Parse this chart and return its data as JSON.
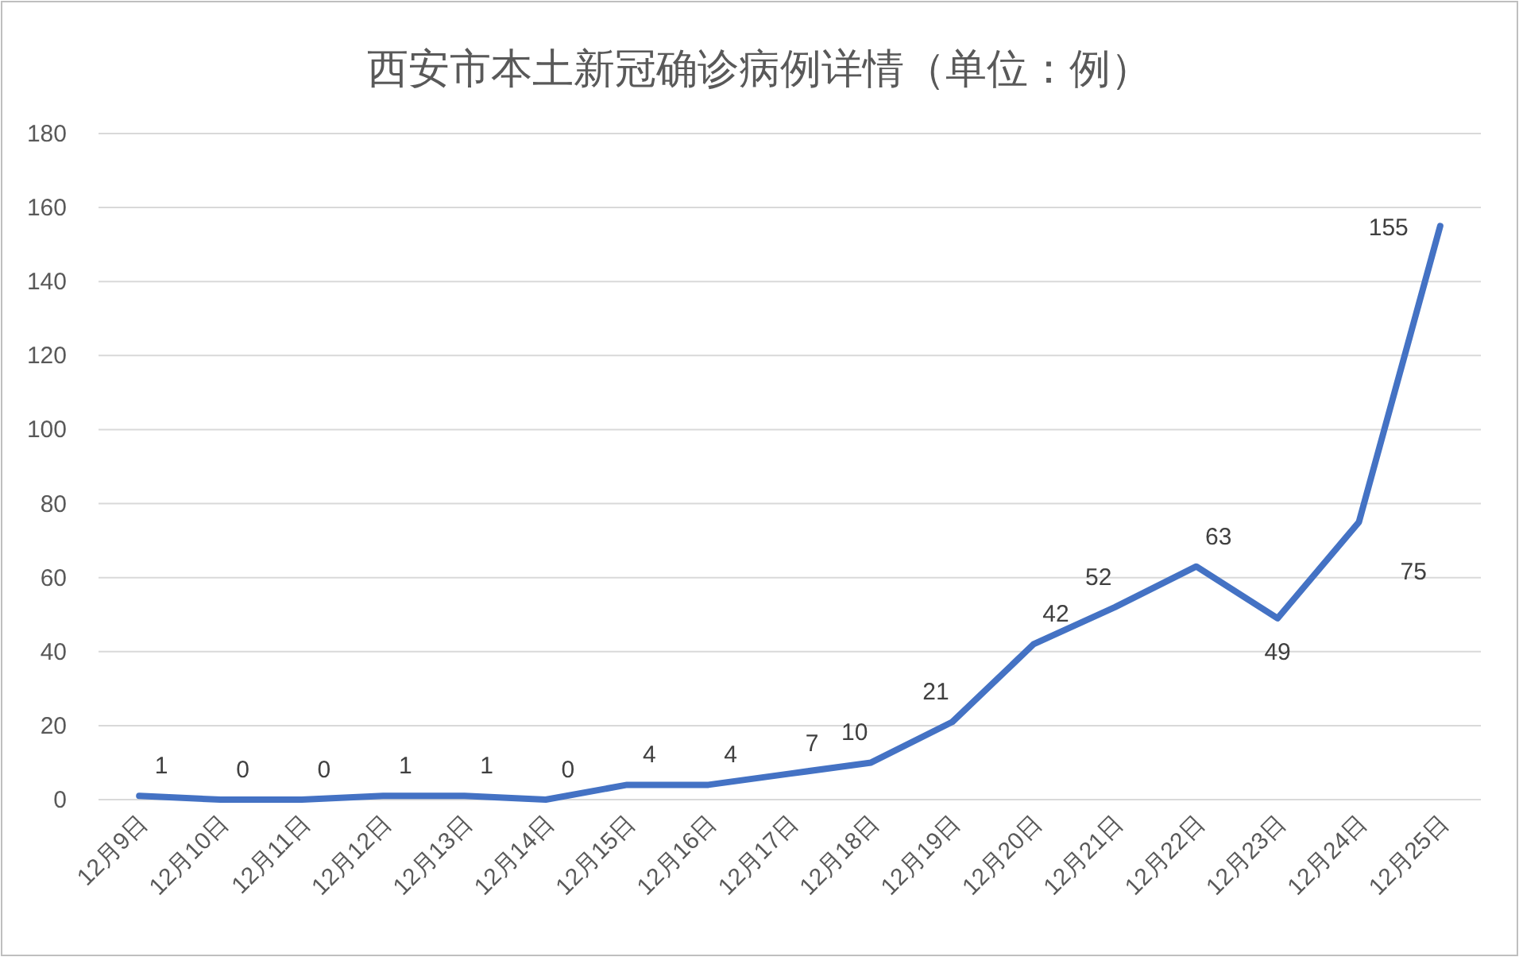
{
  "chart_data": {
    "type": "line",
    "title": "西安市本土新冠确诊病例详情（单位：例）",
    "categories": [
      "12月9日",
      "12月10日",
      "12月11日",
      "12月12日",
      "12月13日",
      "12月14日",
      "12月15日",
      "12月16日",
      "12月17日",
      "12月18日",
      "12月19日",
      "12月20日",
      "12月21日",
      "12月22日",
      "12月23日",
      "12月24日",
      "12月25日"
    ],
    "series": [
      {
        "color": "#4472c4",
        "values": [
          1,
          0,
          0,
          1,
          1,
          0,
          4,
          4,
          7,
          10,
          21,
          42,
          52,
          63,
          49,
          75,
          155
        ]
      }
    ],
    "ylim": [
      0,
      180
    ],
    "yticks": [
      0,
      20,
      40,
      60,
      80,
      100,
      120,
      140,
      160,
      180
    ],
    "grid": "y",
    "data_labels": true,
    "marker": "none",
    "line_style": "solid"
  }
}
